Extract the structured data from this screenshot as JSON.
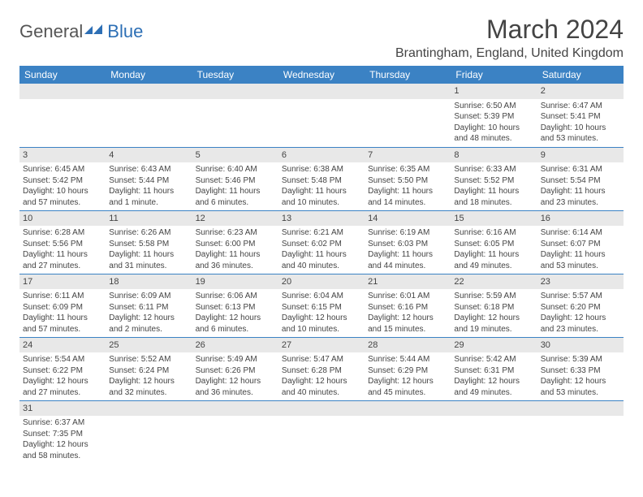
{
  "logo": {
    "text1": "General",
    "text2": "Blue",
    "color1": "#6a6a6a",
    "color2": "#2d6fb5"
  },
  "title": "March 2024",
  "location": "Brantingham, England, United Kingdom",
  "colors": {
    "header_bg": "#3b82c4",
    "header_fg": "#ffffff",
    "daynum_bg": "#e8e8e8",
    "border": "#3b82c4"
  },
  "weekdays": [
    "Sunday",
    "Monday",
    "Tuesday",
    "Wednesday",
    "Thursday",
    "Friday",
    "Saturday"
  ],
  "weeks": [
    [
      null,
      null,
      null,
      null,
      null,
      {
        "n": "1",
        "sr": "6:50 AM",
        "ss": "5:39 PM",
        "dl": "10 hours and 48 minutes."
      },
      {
        "n": "2",
        "sr": "6:47 AM",
        "ss": "5:41 PM",
        "dl": "10 hours and 53 minutes."
      }
    ],
    [
      {
        "n": "3",
        "sr": "6:45 AM",
        "ss": "5:42 PM",
        "dl": "10 hours and 57 minutes."
      },
      {
        "n": "4",
        "sr": "6:43 AM",
        "ss": "5:44 PM",
        "dl": "11 hours and 1 minute."
      },
      {
        "n": "5",
        "sr": "6:40 AM",
        "ss": "5:46 PM",
        "dl": "11 hours and 6 minutes."
      },
      {
        "n": "6",
        "sr": "6:38 AM",
        "ss": "5:48 PM",
        "dl": "11 hours and 10 minutes."
      },
      {
        "n": "7",
        "sr": "6:35 AM",
        "ss": "5:50 PM",
        "dl": "11 hours and 14 minutes."
      },
      {
        "n": "8",
        "sr": "6:33 AM",
        "ss": "5:52 PM",
        "dl": "11 hours and 18 minutes."
      },
      {
        "n": "9",
        "sr": "6:31 AM",
        "ss": "5:54 PM",
        "dl": "11 hours and 23 minutes."
      }
    ],
    [
      {
        "n": "10",
        "sr": "6:28 AM",
        "ss": "5:56 PM",
        "dl": "11 hours and 27 minutes."
      },
      {
        "n": "11",
        "sr": "6:26 AM",
        "ss": "5:58 PM",
        "dl": "11 hours and 31 minutes."
      },
      {
        "n": "12",
        "sr": "6:23 AM",
        "ss": "6:00 PM",
        "dl": "11 hours and 36 minutes."
      },
      {
        "n": "13",
        "sr": "6:21 AM",
        "ss": "6:02 PM",
        "dl": "11 hours and 40 minutes."
      },
      {
        "n": "14",
        "sr": "6:19 AM",
        "ss": "6:03 PM",
        "dl": "11 hours and 44 minutes."
      },
      {
        "n": "15",
        "sr": "6:16 AM",
        "ss": "6:05 PM",
        "dl": "11 hours and 49 minutes."
      },
      {
        "n": "16",
        "sr": "6:14 AM",
        "ss": "6:07 PM",
        "dl": "11 hours and 53 minutes."
      }
    ],
    [
      {
        "n": "17",
        "sr": "6:11 AM",
        "ss": "6:09 PM",
        "dl": "11 hours and 57 minutes."
      },
      {
        "n": "18",
        "sr": "6:09 AM",
        "ss": "6:11 PM",
        "dl": "12 hours and 2 minutes."
      },
      {
        "n": "19",
        "sr": "6:06 AM",
        "ss": "6:13 PM",
        "dl": "12 hours and 6 minutes."
      },
      {
        "n": "20",
        "sr": "6:04 AM",
        "ss": "6:15 PM",
        "dl": "12 hours and 10 minutes."
      },
      {
        "n": "21",
        "sr": "6:01 AM",
        "ss": "6:16 PM",
        "dl": "12 hours and 15 minutes."
      },
      {
        "n": "22",
        "sr": "5:59 AM",
        "ss": "6:18 PM",
        "dl": "12 hours and 19 minutes."
      },
      {
        "n": "23",
        "sr": "5:57 AM",
        "ss": "6:20 PM",
        "dl": "12 hours and 23 minutes."
      }
    ],
    [
      {
        "n": "24",
        "sr": "5:54 AM",
        "ss": "6:22 PM",
        "dl": "12 hours and 27 minutes."
      },
      {
        "n": "25",
        "sr": "5:52 AM",
        "ss": "6:24 PM",
        "dl": "12 hours and 32 minutes."
      },
      {
        "n": "26",
        "sr": "5:49 AM",
        "ss": "6:26 PM",
        "dl": "12 hours and 36 minutes."
      },
      {
        "n": "27",
        "sr": "5:47 AM",
        "ss": "6:28 PM",
        "dl": "12 hours and 40 minutes."
      },
      {
        "n": "28",
        "sr": "5:44 AM",
        "ss": "6:29 PM",
        "dl": "12 hours and 45 minutes."
      },
      {
        "n": "29",
        "sr": "5:42 AM",
        "ss": "6:31 PM",
        "dl": "12 hours and 49 minutes."
      },
      {
        "n": "30",
        "sr": "5:39 AM",
        "ss": "6:33 PM",
        "dl": "12 hours and 53 minutes."
      }
    ],
    [
      {
        "n": "31",
        "sr": "6:37 AM",
        "ss": "7:35 PM",
        "dl": "12 hours and 58 minutes."
      },
      null,
      null,
      null,
      null,
      null,
      null
    ]
  ],
  "labels": {
    "sunrise": "Sunrise:",
    "sunset": "Sunset:",
    "daylight": "Daylight:"
  }
}
